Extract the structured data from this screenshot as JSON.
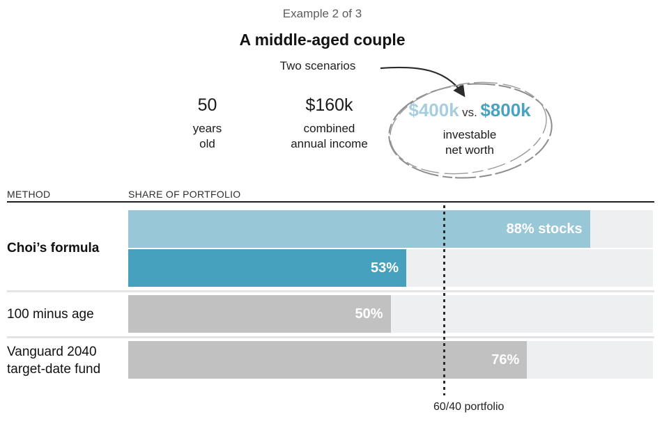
{
  "header": {
    "kicker": "Example 2 of 3",
    "title": "A middle-aged couple",
    "subtitle": "Two scenarios"
  },
  "stats": {
    "age": {
      "value": "50",
      "label": "years\nold"
    },
    "income": {
      "value": "$160k",
      "label": "combined\nannual income"
    },
    "networth": {
      "value_a": "$400k",
      "vs": "vs.",
      "value_b": "$800k",
      "label": "investable\nnet worth"
    }
  },
  "colors": {
    "light_blue": "#98c7d8",
    "teal": "#46a1bf",
    "gray": "#c1c1c1",
    "track": "#edeff1",
    "value_light_blue": "#a5cedf",
    "value_teal": "#4aa2c1"
  },
  "chart_data": {
    "type": "bar",
    "title": "A middle-aged couple",
    "subtitle": "Two scenarios",
    "unit": "percent of portfolio in stocks",
    "xlim": [
      0,
      100
    ],
    "column_headers": {
      "method": "METHOD",
      "share": "SHARE OF PORTFOLIO"
    },
    "reference_line": {
      "value": 60,
      "label": "60/40 portfolio"
    },
    "rows": [
      {
        "method": "Choi’s formula",
        "bars": [
          {
            "scenario": "$400k investable net worth",
            "value": 88,
            "label": "88% stocks",
            "color_key": "light_blue"
          },
          {
            "scenario": "$800k investable net worth",
            "value": 53,
            "label": "53%",
            "color_key": "teal"
          }
        ]
      },
      {
        "method": "100 minus age",
        "bars": [
          {
            "scenario": "",
            "value": 50,
            "label": "50%",
            "color_key": "gray"
          }
        ]
      },
      {
        "method": "Vanguard 2040\ntarget-date fund",
        "bars": [
          {
            "scenario": "",
            "value": 76,
            "label": "76%",
            "color_key": "gray"
          }
        ]
      }
    ]
  }
}
